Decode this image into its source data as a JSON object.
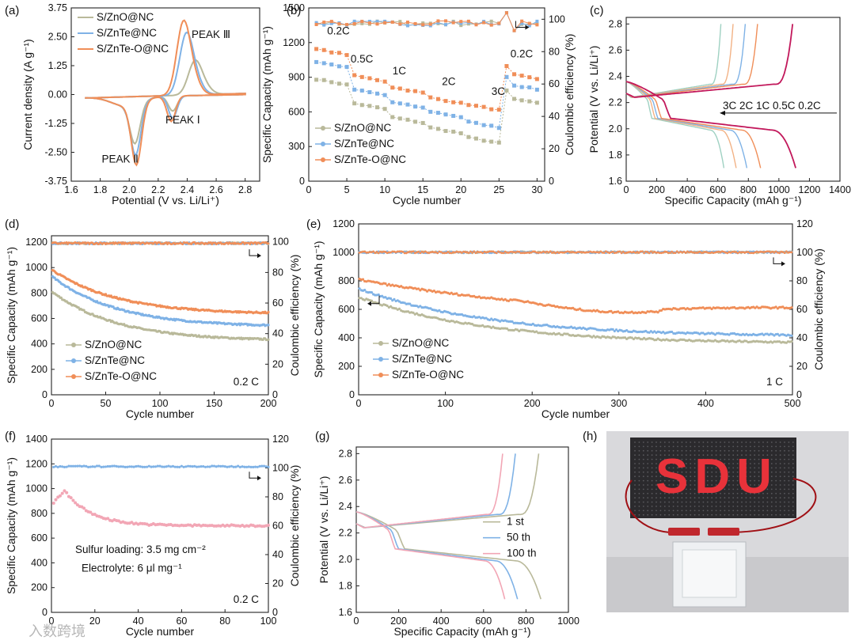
{
  "figure": {
    "watermark": "入数跨境",
    "photo_letters": "SDU"
  },
  "chart_data": [
    {
      "id": "a",
      "panel_label": "(a)",
      "type": "line",
      "kind": "cv",
      "xlabel": "Potential (V vs. Li/Li⁺)",
      "ylabel": "Current density (A g⁻¹)",
      "xlim": [
        1.6,
        2.9
      ],
      "ylim": [
        -3.75,
        3.75
      ],
      "xticks": [
        "1.6",
        "1.8",
        "2.0",
        "2.2",
        "2.4",
        "2.6",
        "2.8"
      ],
      "yticks": [
        "3.75",
        "2.50",
        "1.25",
        "0.00",
        "-1.25",
        "-2.50",
        "-3.75"
      ],
      "annotations": [
        "PEAK Ⅲ",
        "PEAK Ⅰ",
        "PEAK Ⅱ"
      ],
      "series": [
        {
          "name": "S/ZnO@NC",
          "color": "#b9b99a",
          "cathodic": {
            "p1": [
              2.3,
              -0.65
            ],
            "p2": [
              2.04,
              -1.7
            ]
          },
          "anodic": {
            "p3": [
              2.45,
              1.3
            ]
          }
        },
        {
          "name": "S/ZnTe@NC",
          "color": "#7fb2e6",
          "cathodic": {
            "p1": [
              2.3,
              -0.95
            ],
            "p2": [
              2.045,
              -2.2
            ]
          },
          "anodic": {
            "p3": [
              2.39,
              2.35
            ]
          }
        },
        {
          "name": "S/ZnTe-O@NC",
          "color": "#f08e58",
          "cathodic": {
            "p1": [
              2.29,
              -1.1
            ],
            "p2": [
              2.05,
              -2.65
            ]
          },
          "anodic": {
            "p3": [
              2.37,
              2.8
            ]
          }
        }
      ]
    },
    {
      "id": "b",
      "panel_label": "(b)",
      "type": "scatter",
      "kind": "rate",
      "xlabel": "Cycle number",
      "ylabel": "Specific Capacity (mAh g⁻¹)",
      "y2label": "Coulombic efficiency (%)",
      "xlim": [
        0,
        31
      ],
      "ylim": [
        0,
        1500
      ],
      "y2lim": [
        0,
        107
      ],
      "xticks": [
        "0",
        "5",
        "10",
        "15",
        "20",
        "25",
        "30"
      ],
      "yticks": [
        "0",
        "300",
        "600",
        "900",
        "1200",
        "1500"
      ],
      "y2ticks": [
        "0",
        "20",
        "40",
        "60",
        "80",
        "100"
      ],
      "rate_labels": [
        "0.2C",
        "0.5C",
        "1C",
        "2C",
        "3C",
        "0.2C"
      ],
      "series": [
        {
          "name": "S/ZnO@NC",
          "color": "#b9b99a",
          "steps": [
            850,
            640,
            520,
            430,
            345,
            690
          ]
        },
        {
          "name": "S/ZnTe@NC",
          "color": "#7fb2e6",
          "steps": [
            1000,
            760,
            650,
            570,
            480,
            810
          ]
        },
        {
          "name": "S/ZnTe-O@NC",
          "color": "#f08e58",
          "steps": [
            1110,
            880,
            780,
            690,
            630,
            900
          ]
        }
      ],
      "ce_percent": 98
    },
    {
      "id": "c",
      "panel_label": "(c)",
      "type": "line",
      "kind": "gcd_rates",
      "xlabel": "Specific Capacity (mAh g⁻¹)",
      "ylabel": "Potential (V vs. Li/Li⁺)",
      "xlim": [
        0,
        1400
      ],
      "ylim": [
        1.6,
        2.85
      ],
      "xticks": [
        "0",
        "200",
        "400",
        "600",
        "800",
        "1000",
        "1200",
        "1400"
      ],
      "yticks": [
        "1.6",
        "1.8",
        "2.0",
        "2.2",
        "2.4",
        "2.6",
        "2.8"
      ],
      "rate_annotation": "3C 2C  1C 0.5C 0.2C",
      "series": [
        {
          "name": "3C",
          "color": "#9fd1c2",
          "discharge_cap": 640,
          "charge_cap": 620
        },
        {
          "name": "2C",
          "color": "#f2b285",
          "discharge_cap": 720,
          "charge_cap": 700
        },
        {
          "name": "1C",
          "color": "#7fb2e6",
          "discharge_cap": 790,
          "charge_cap": 780
        },
        {
          "name": "0.5C",
          "color": "#f08e58",
          "discharge_cap": 880,
          "charge_cap": 860
        },
        {
          "name": "0.2C",
          "color": "#c2185b",
          "discharge_cap": 1110,
          "charge_cap": 1090
        }
      ]
    },
    {
      "id": "d",
      "panel_label": "(d)",
      "type": "scatter",
      "kind": "cycling",
      "xlabel": "Cycle number",
      "ylabel": "Specific Capacity (mAh g⁻¹)",
      "y2label": "Coulombic efficiency (%)",
      "xlim": [
        0,
        200
      ],
      "ylim": [
        0,
        1250
      ],
      "y2lim": [
        0,
        104
      ],
      "xticks": [
        "0",
        "50",
        "100",
        "150",
        "200"
      ],
      "yticks": [
        "0",
        "200",
        "400",
        "600",
        "800",
        "1000",
        "1200"
      ],
      "y2ticks": [
        "0",
        "20",
        "40",
        "60",
        "80",
        "100"
      ],
      "rate_note": "0.2 C",
      "series": [
        {
          "name": "S/ZnO@NC",
          "color": "#b9b99a",
          "start": 830,
          "end": 420
        },
        {
          "name": "S/ZnTe@NC",
          "color": "#7fb2e6",
          "start": 950,
          "end": 530
        },
        {
          "name": "S/ZnTe-O@NC",
          "color": "#f08e58",
          "start": 1000,
          "end": 630
        }
      ],
      "ce_percent": 99
    },
    {
      "id": "e",
      "panel_label": "(e)",
      "type": "scatter",
      "kind": "cycling",
      "xlabel": "Cycle number",
      "ylabel": "Specific Capacity (mAh g⁻¹)",
      "y2label": "Coulombic efficiency (%)",
      "xlim": [
        0,
        500
      ],
      "ylim": [
        0,
        1200
      ],
      "y2lim": [
        0,
        120
      ],
      "xticks": [
        "0",
        "100",
        "200",
        "300",
        "400",
        "500"
      ],
      "yticks": [
        "0",
        "200",
        "400",
        "600",
        "800",
        "1000",
        "1200"
      ],
      "y2ticks": [
        "0",
        "20",
        "40",
        "60",
        "80",
        "100",
        "120"
      ],
      "rate_note": "1 C",
      "series": [
        {
          "name": "S/ZnO@NC",
          "color": "#b9b99a",
          "start": 700,
          "end": 355
        },
        {
          "name": "S/ZnTe@NC",
          "color": "#7fb2e6",
          "start": 760,
          "end": 405
        },
        {
          "name": "S/ZnTe-O@NC",
          "color": "#f08e58",
          "start": 820,
          "end": 590
        }
      ],
      "ce_percent": 100
    },
    {
      "id": "f",
      "panel_label": "(f)",
      "type": "scatter",
      "kind": "high_loading",
      "xlabel": "Cycle number",
      "ylabel": "Specific Capacity (mAh g⁻¹)",
      "y2label": "Coulombic efficiency (%)",
      "xlim": [
        0,
        100
      ],
      "ylim": [
        0,
        1400
      ],
      "y2lim": [
        0,
        120
      ],
      "xticks": [
        "0",
        "20",
        "40",
        "60",
        "80",
        "100"
      ],
      "yticks": [
        "0",
        "200",
        "400",
        "600",
        "800",
        "1000",
        "1200",
        "1400"
      ],
      "y2ticks": [
        "0",
        "20",
        "40",
        "60",
        "80",
        "100",
        "120"
      ],
      "notes": [
        "Sulfur loading: 3.5 mg cm⁻²",
        "Electrolyte: 6 μl mg⁻¹"
      ],
      "rate_note": "0.2 C",
      "capacity_color": "#f2a6b5",
      "ce_color": "#7fb2e6",
      "capacity_start": 870,
      "capacity_peak": 985,
      "capacity_end": 700,
      "ce_percent": 101
    },
    {
      "id": "g",
      "panel_label": "(g)",
      "type": "line",
      "kind": "gcd_cycles",
      "xlabel": "Specific Capacity (mAh g⁻¹)",
      "ylabel": "Potential (V vs. Li/Li⁺)",
      "xlim": [
        0,
        1000
      ],
      "ylim": [
        1.6,
        2.85
      ],
      "xticks": [
        "0",
        "200",
        "400",
        "600",
        "800",
        "1000"
      ],
      "yticks": [
        "1.6",
        "1.8",
        "2.0",
        "2.2",
        "2.4",
        "2.6",
        "2.8"
      ],
      "series": [
        {
          "name": "1 st",
          "color": "#b9b99a",
          "discharge_cap": 870,
          "charge_cap": 860
        },
        {
          "name": "50 th",
          "color": "#7fb2e6",
          "discharge_cap": 760,
          "charge_cap": 750
        },
        {
          "name": "100 th",
          "color": "#f2a6b5",
          "discharge_cap": 700,
          "charge_cap": 690
        }
      ]
    },
    {
      "id": "h",
      "panel_label": "(h)",
      "type": "photo"
    }
  ]
}
